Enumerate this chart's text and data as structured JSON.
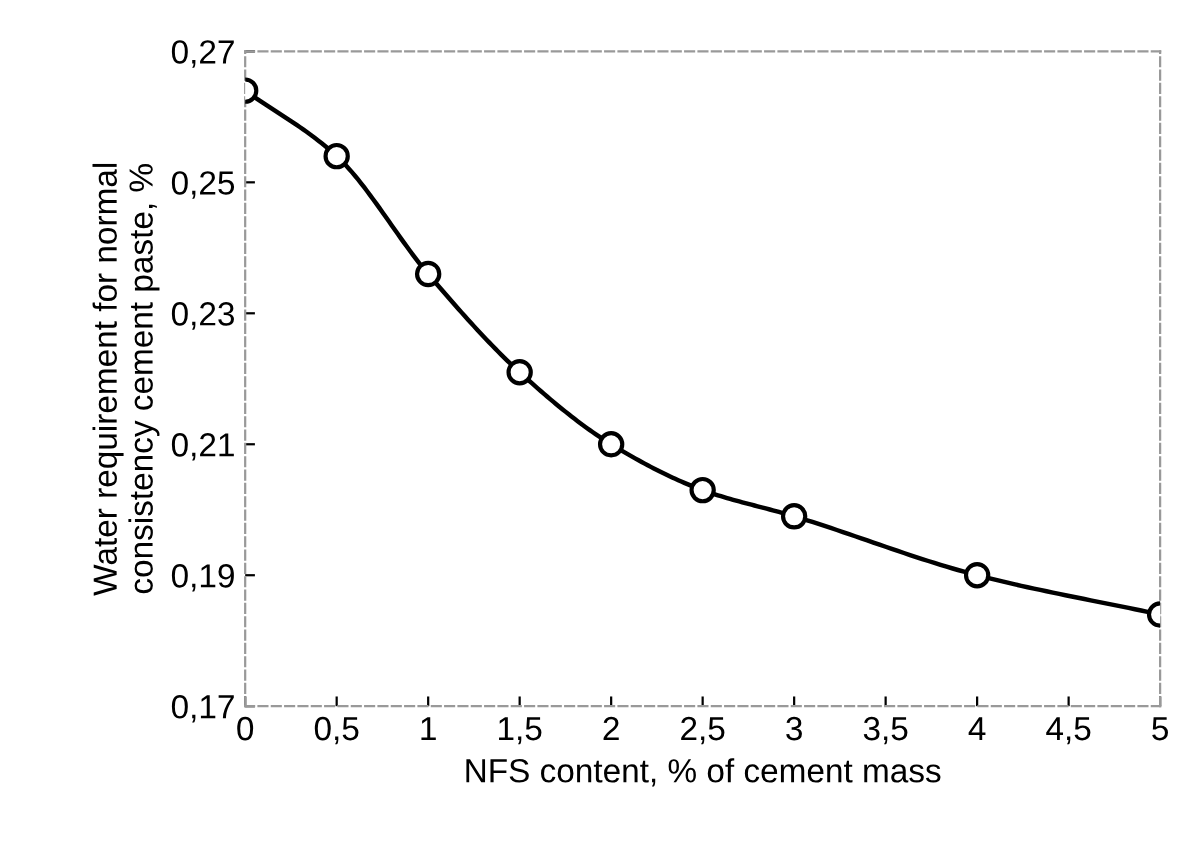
{
  "chart_data": {
    "type": "line",
    "xlabel": "NFS content, % of cement mass",
    "ylabel": "Water requirement for normal\nconsistency cement paste, %",
    "x": [
      0,
      0.5,
      1,
      1.5,
      2,
      2.5,
      3,
      4,
      5
    ],
    "series": [
      {
        "color": "#000000",
        "values": [
          0.264,
          0.254,
          0.236,
          0.221,
          0.21,
          0.203,
          0.199,
          0.19,
          0.184
        ]
      }
    ],
    "marker": "circle",
    "line_style": "solid",
    "grid": false,
    "legend": false,
    "xlim": [
      0,
      5
    ],
    "ylim": [
      0.17,
      0.27
    ],
    "xticks": [
      {
        "value": 0,
        "label": "0"
      },
      {
        "value": 0.5,
        "label": "0,5"
      },
      {
        "value": 1,
        "label": "1"
      },
      {
        "value": 1.5,
        "label": "1,5"
      },
      {
        "value": 2,
        "label": "2"
      },
      {
        "value": 2.5,
        "label": "2,5"
      },
      {
        "value": 3,
        "label": "3"
      },
      {
        "value": 3.5,
        "label": "3,5"
      },
      {
        "value": 4,
        "label": "4"
      },
      {
        "value": 4.5,
        "label": "4,5"
      },
      {
        "value": 5,
        "label": "5"
      }
    ],
    "yticks": [
      {
        "value": 0.17,
        "label": "0,17"
      },
      {
        "value": 0.19,
        "label": "0,19"
      },
      {
        "value": 0.21,
        "label": "0,21"
      },
      {
        "value": 0.23,
        "label": "0,23"
      },
      {
        "value": 0.25,
        "label": "0,25"
      },
      {
        "value": 0.27,
        "label": "0,27"
      }
    ]
  }
}
